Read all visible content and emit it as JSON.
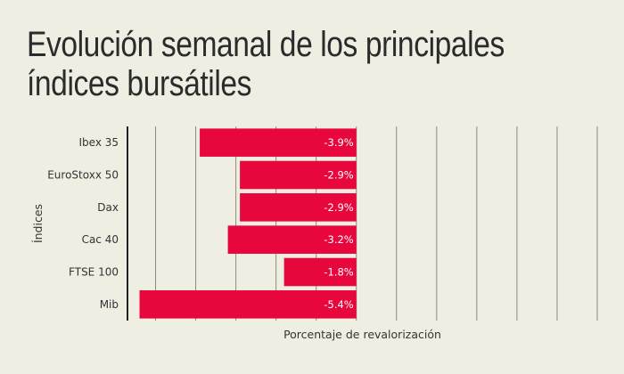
{
  "chart_data": {
    "type": "bar",
    "orientation": "horizontal",
    "title": "Evolución semanal de los principales índices bursátiles",
    "ylabel": "Índices",
    "xlabel": "Porcentaje de revalorización",
    "categories": [
      "Ibex 35",
      "EuroStoxx 50",
      "Dax",
      "Cac 40",
      "FTSE 100",
      "Mib"
    ],
    "values": [
      -3.9,
      -2.9,
      -2.9,
      -3.2,
      -1.8,
      -5.4
    ],
    "value_labels": [
      "-3.9%",
      "-2.9%",
      "-2.9%",
      "-3.2%",
      "-1.8%",
      "-5.4%"
    ],
    "xlim": [
      -5.7,
      6.0
    ],
    "grid": true,
    "colors": {
      "bar": "#e8073d",
      "grid": "#8a8a7e",
      "axis": "#222222",
      "background": "#efeee3"
    }
  }
}
